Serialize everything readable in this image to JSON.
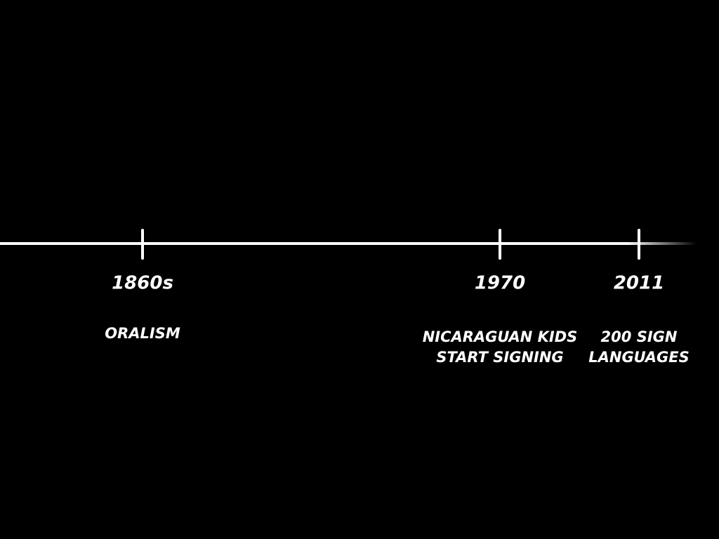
{
  "timeline": {
    "events": [
      {
        "date": "1860s",
        "lines": [
          "ORALISM"
        ],
        "color": "#e8321e"
      },
      {
        "date": "1970",
        "lines": [
          "NICARAGUAN KIDS",
          "START SIGNING"
        ],
        "color": "#ffffff"
      },
      {
        "date": "2011",
        "lines": [
          "200 SIGN",
          "LANGUAGES"
        ],
        "color": "#ffffff"
      }
    ]
  }
}
